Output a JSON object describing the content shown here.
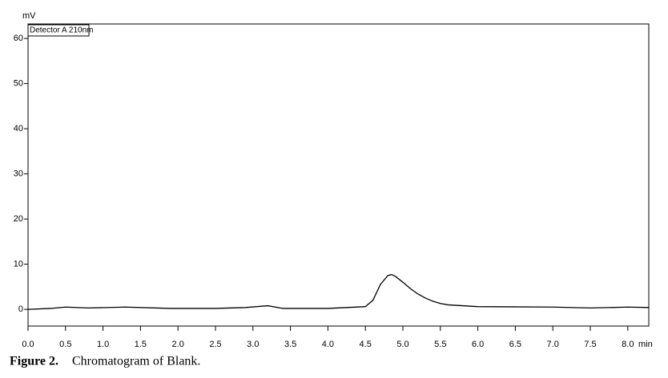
{
  "chart_data": {
    "type": "line",
    "y_unit": "mV",
    "x_unit": "min",
    "legend_label": "Detector A 210nm",
    "caption_label": "Figure 2.",
    "caption_text": "Chromatogram of Blank.",
    "x": [
      0,
      0.3,
      0.5,
      0.8,
      1.3,
      1.9,
      2.5,
      2.9,
      3.2,
      3.4,
      4.0,
      4.5,
      4.6,
      4.7,
      4.8,
      4.85,
      4.9,
      5.0,
      5.1,
      5.2,
      5.3,
      5.4,
      5.5,
      5.6,
      5.8,
      6.0,
      7.0,
      7.5,
      8.0,
      8.28
    ],
    "values": [
      0,
      0.2,
      0.5,
      0.3,
      0.5,
      0.2,
      0.2,
      0.4,
      0.8,
      0.2,
      0.2,
      0.6,
      2.0,
      5.5,
      7.5,
      7.7,
      7.3,
      6.0,
      4.6,
      3.4,
      2.5,
      1.8,
      1.3,
      1.0,
      0.8,
      0.6,
      0.5,
      0.3,
      0.5,
      0.4
    ],
    "color": "#000000",
    "xlim": [
      0,
      8.28
    ],
    "ylim": [
      -3.7,
      63.2
    ],
    "xticks": [
      {
        "value": 0,
        "label": "0.0"
      },
      0.5,
      {
        "value": 1,
        "label": "1.0"
      },
      1.5,
      {
        "value": 2,
        "label": "2.0"
      },
      2.5,
      {
        "value": 3,
        "label": "3.0"
      },
      3.5,
      {
        "value": 4,
        "label": "4.0"
      },
      4.5,
      {
        "value": 5,
        "label": "5.0"
      },
      5.5,
      {
        "value": 6,
        "label": "6.0"
      },
      6.5,
      {
        "value": 7,
        "label": "7.0"
      },
      7.5,
      {
        "value": 8,
        "label": "8.0"
      }
    ],
    "yticks": [
      0,
      10,
      20,
      30,
      40,
      50,
      60
    ]
  }
}
